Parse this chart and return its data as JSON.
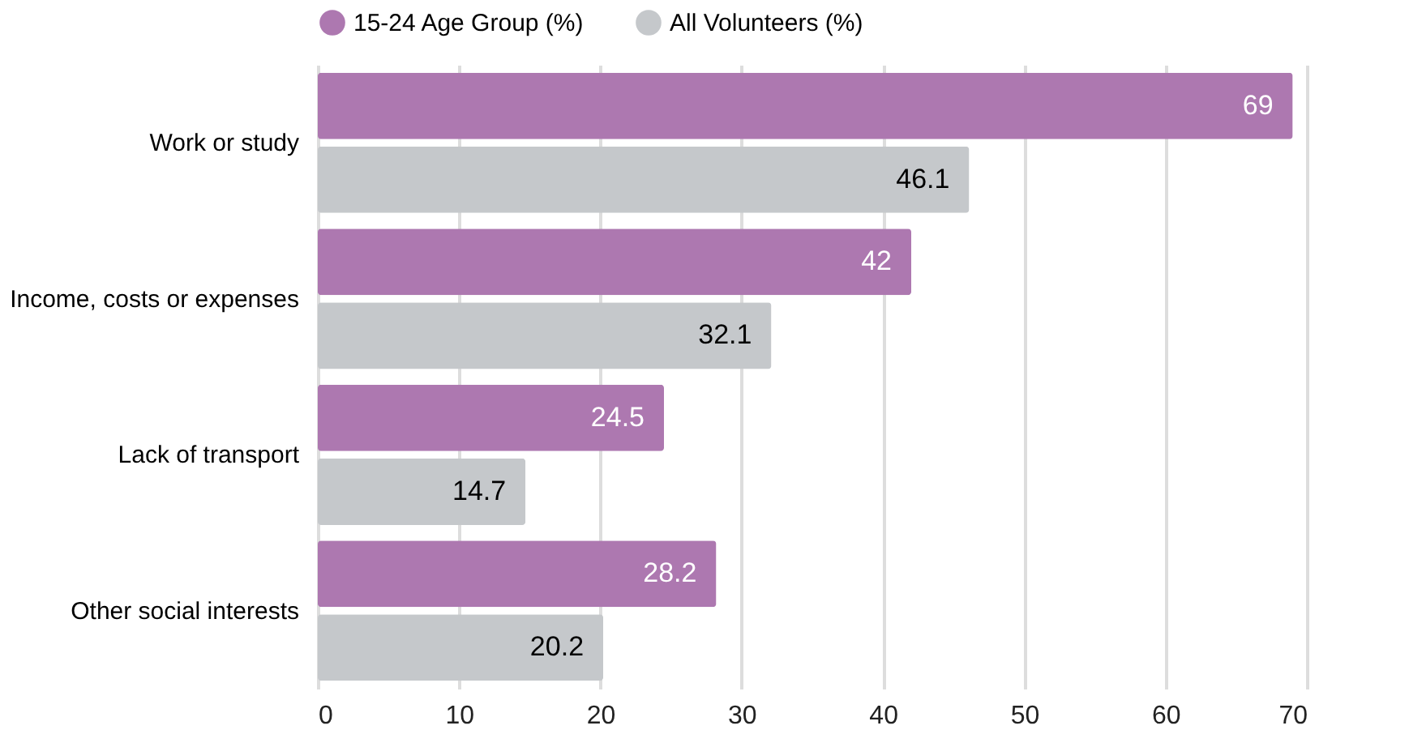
{
  "chart_data": {
    "type": "bar",
    "orientation": "horizontal",
    "categories": [
      "Work or study",
      "Income, costs or expenses",
      "Lack of transport",
      "Other social interests"
    ],
    "series": [
      {
        "name": "15-24 Age Group (%)",
        "color": "#ad78b0",
        "values": [
          69,
          42,
          24.5,
          28.2
        ]
      },
      {
        "name": "All Volunteers (%)",
        "color": "#c5c8cb",
        "values": [
          46.1,
          32.1,
          14.7,
          20.2
        ]
      }
    ],
    "xlim": [
      0,
      70
    ],
    "xticks": [
      0,
      10,
      20,
      30,
      40,
      50,
      60,
      70
    ],
    "grid": "x",
    "legend": "top",
    "data_labels": true
  }
}
